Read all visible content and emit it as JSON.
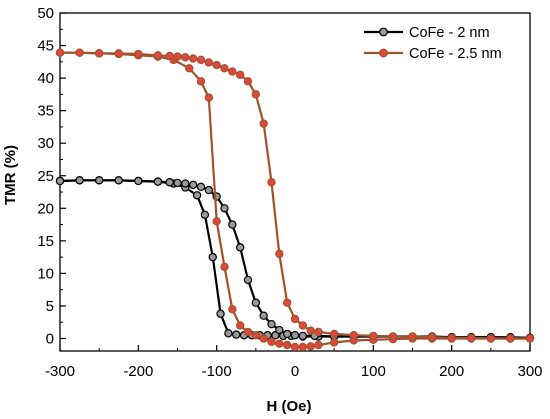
{
  "chart_data": {
    "type": "line",
    "title": "",
    "xlabel": "H (Oe)",
    "ylabel": "TMR (%)",
    "xlim": [
      -300,
      300
    ],
    "ylim": [
      -2,
      50
    ],
    "xticks": [
      -300,
      -200,
      -100,
      0,
      100,
      200,
      300
    ],
    "yticks": [
      0,
      5,
      10,
      15,
      20,
      25,
      30,
      35,
      40,
      45,
      50
    ],
    "grid": false,
    "legend_position": "top-right",
    "series": [
      {
        "name": "CoFe - 2 nm",
        "color": "#000000",
        "marker_fill": "#9a9a9a",
        "branches": [
          {
            "x": [
              -300,
              -275,
              -250,
              -225,
              -200,
              -175,
              -155,
              -140,
              -125,
              -115,
              -105,
              -95,
              -85,
              -75,
              -65,
              -55,
              -45,
              -35,
              -25,
              -15,
              -5,
              10,
              30,
              50,
              75,
              100,
              125,
              150,
              175,
              200,
              225,
              250,
              275,
              300
            ],
            "y": [
              24.2,
              24.3,
              24.3,
              24.3,
              24.2,
              24.1,
              23.8,
              23.2,
              22.0,
              19.0,
              12.5,
              3.8,
              0.8,
              0.6,
              0.5,
              0.5,
              0.5,
              0.5,
              0.5,
              0.4,
              0.4,
              0.3,
              0.3,
              0.3,
              0.3,
              0.3,
              0.3,
              0.3,
              0.3,
              0.2,
              0.2,
              0.2,
              0.2,
              0.1
            ]
          },
          {
            "x": [
              300,
              275,
              250,
              225,
              200,
              175,
              150,
              125,
              100,
              75,
              50,
              25,
              10,
              0,
              -10,
              -20,
              -30,
              -40,
              -50,
              -60,
              -70,
              -80,
              -90,
              -100,
              -110,
              -120,
              -130,
              -140,
              -150,
              -160,
              -175,
              -200,
              -225,
              -250,
              -275,
              -300
            ],
            "y": [
              0.1,
              0.1,
              0.2,
              0.2,
              0.2,
              0.2,
              0.3,
              0.3,
              0.3,
              0.3,
              0.3,
              0.4,
              0.4,
              0.5,
              0.7,
              1.3,
              2.2,
              3.5,
              5.5,
              9.0,
              14.0,
              17.5,
              20.0,
              21.8,
              22.8,
              23.3,
              23.6,
              23.8,
              23.9,
              24.0,
              24.1,
              24.2,
              24.3,
              24.3,
              24.3,
              24.2
            ]
          }
        ]
      },
      {
        "name": "CoFe - 2.5 nm",
        "color": "#a0522d",
        "marker_fill": "#e0483e",
        "branches": [
          {
            "x": [
              -300,
              -275,
              -250,
              -225,
              -200,
              -175,
              -155,
              -135,
              -120,
              -110,
              -100,
              -90,
              -80,
              -70,
              -60,
              -50,
              -40,
              -30,
              -20,
              -10,
              0,
              10,
              20,
              30,
              50,
              75,
              100,
              125,
              150,
              175,
              200,
              225,
              250,
              275,
              300
            ],
            "y": [
              43.9,
              43.9,
              43.8,
              43.7,
              43.5,
              43.3,
              42.8,
              41.5,
              39.5,
              37.0,
              18.0,
              11.0,
              4.5,
              2.0,
              1.0,
              0.5,
              0.0,
              -0.5,
              -0.8,
              -1.0,
              -1.3,
              -1.3,
              -1.2,
              -1.0,
              -0.6,
              -0.3,
              -0.2,
              -0.1,
              0.0,
              0.0,
              0.0,
              0.0,
              0.0,
              0.0,
              0.0
            ]
          },
          {
            "x": [
              300,
              275,
              250,
              225,
              200,
              175,
              150,
              125,
              100,
              75,
              50,
              30,
              20,
              10,
              0,
              -10,
              -20,
              -30,
              -40,
              -50,
              -60,
              -70,
              -80,
              -90,
              -100,
              -110,
              -120,
              -130,
              -140,
              -150,
              -160,
              -175,
              -200,
              -225,
              -250,
              -275,
              -300
            ],
            "y": [
              0.0,
              0.0,
              0.0,
              0.1,
              0.1,
              0.2,
              0.3,
              0.3,
              0.4,
              0.5,
              0.7,
              1.0,
              1.2,
              2.0,
              3.0,
              5.5,
              13.0,
              24.0,
              33.0,
              37.5,
              39.5,
              40.5,
              41.0,
              41.5,
              42.0,
              42.4,
              42.8,
              43.0,
              43.2,
              43.3,
              43.4,
              43.5,
              43.7,
              43.8,
              43.8,
              43.9,
              43.9
            ]
          }
        ]
      }
    ]
  }
}
